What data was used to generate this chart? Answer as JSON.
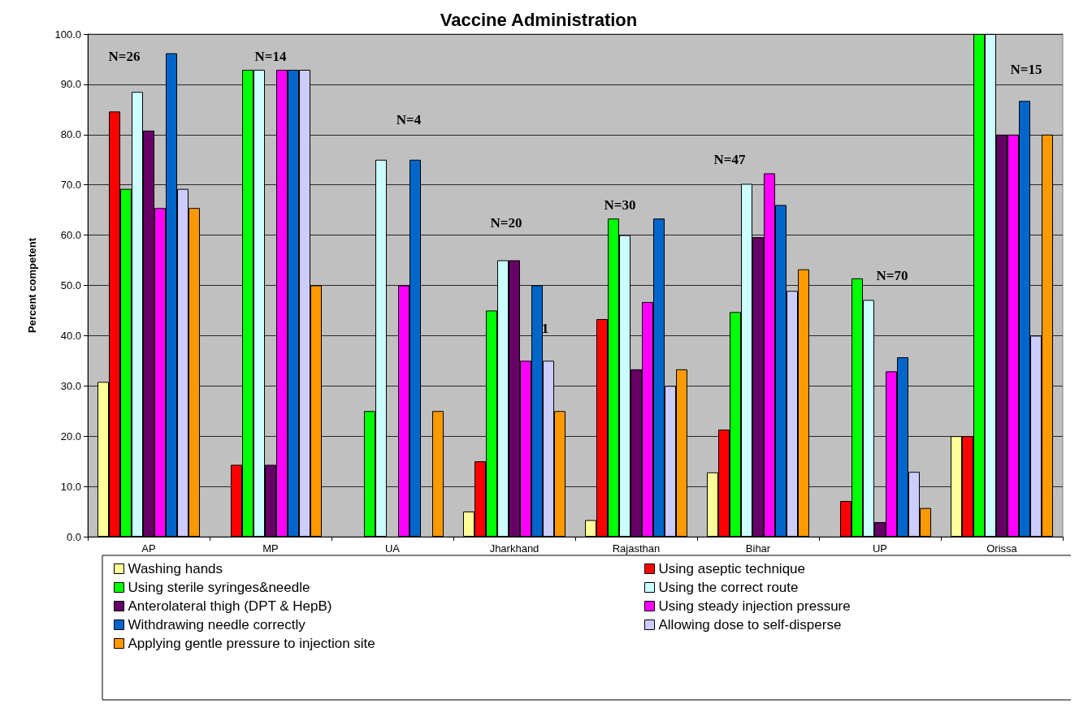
{
  "chart_data": {
    "type": "bar",
    "title": "Vaccine Administration",
    "ylabel": "Percent competent",
    "categories": [
      "AP",
      "MP",
      "UA",
      "Jharkhand",
      "Rajasthan",
      "Bihar",
      "UP",
      "Orissa"
    ],
    "series": [
      {
        "name": "Washing hands",
        "color": "#ffff99",
        "values": [
          30.8,
          null,
          null,
          5,
          3.3,
          12.8,
          null,
          20
        ]
      },
      {
        "name": "Using aseptic technique",
        "color": "#ff0000",
        "values": [
          84.6,
          14.3,
          null,
          15,
          43.3,
          21.3,
          7.1,
          20
        ]
      },
      {
        "name": "Using sterile syringes&needle",
        "color": "#00ff00",
        "values": [
          69.2,
          92.9,
          25,
          45,
          63.3,
          44.7,
          51.4,
          100
        ]
      },
      {
        "name": "Using the correct route",
        "color": "#ccffff",
        "values": [
          88.5,
          92.9,
          75,
          55,
          60,
          70.2,
          47.1,
          100
        ]
      },
      {
        "name": "Anterolateral thigh (DPT & HepB)",
        "color": "#660066",
        "values": [
          80.8,
          14.3,
          null,
          55,
          33.3,
          59.6,
          2.9,
          80
        ]
      },
      {
        "name": "Using steady injection pressure",
        "color": "#ff00ff",
        "values": [
          65.4,
          92.9,
          50,
          35,
          46.7,
          72.3,
          32.9,
          80
        ]
      },
      {
        "name": "Withdrawing needle correctly",
        "color": "#0066cc",
        "values": [
          96.2,
          92.9,
          75,
          50,
          63.3,
          66,
          35.7,
          86.7
        ]
      },
      {
        "name": "Allowing dose to self-disperse",
        "color": "#ccccff",
        "values": [
          69.2,
          92.9,
          null,
          35,
          30,
          48.9,
          12.9,
          40
        ]
      },
      {
        "name": "Applying gentle pressure to injection site",
        "color": "#ff9900",
        "values": [
          65.4,
          50,
          25,
          25,
          33.3,
          53.2,
          5.7,
          80
        ]
      }
    ],
    "ylim": [
      0,
      100
    ],
    "yticks": [
      {
        "value": 0,
        "label": "0.0"
      },
      {
        "value": 10,
        "label": "10.0"
      },
      {
        "value": 20,
        "label": "20.0"
      },
      {
        "value": 30,
        "label": "30.0"
      },
      {
        "value": 40,
        "label": "40.0"
      },
      {
        "value": 50,
        "label": "50.0"
      },
      {
        "value": 60,
        "label": "60.0"
      },
      {
        "value": 70,
        "label": "70.0"
      },
      {
        "value": 80,
        "label": "80.0"
      },
      {
        "value": 90,
        "label": "90.0"
      },
      {
        "value": 100,
        "label": "100.0"
      }
    ],
    "grid": "y",
    "legend": "bottom",
    "annotations": [
      "N=26",
      "N=14",
      "N=4",
      "N=20",
      "N=30",
      "N=47",
      "N=70",
      "N=15",
      "1"
    ]
  }
}
